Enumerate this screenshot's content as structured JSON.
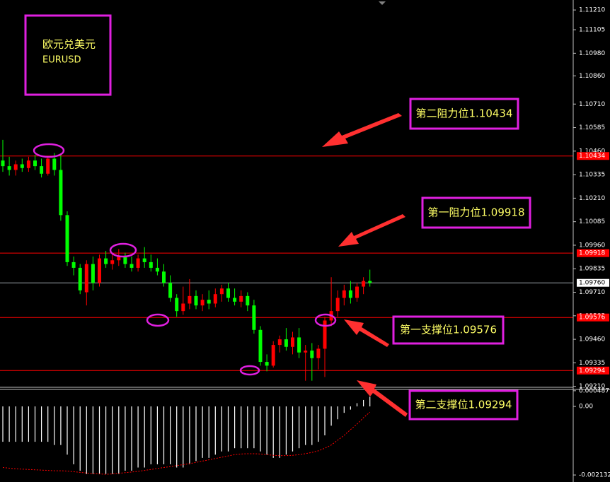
{
  "chart_data": [
    {
      "type": "candlestick",
      "title": "欧元兑美元",
      "subtitle": "EURUSD",
      "up_color": "#ff0000",
      "down_color": "#00ff00",
      "open": [
        1.1041,
        1.1038,
        1.1036,
        1.1039,
        1.1037,
        1.1041,
        1.1038,
        1.1034,
        1.1042,
        1.1036,
        1.1012,
        1.0987,
        1.0984,
        1.0971,
        1.0986,
        1.0976,
        1.0989,
        1.0986,
        1.0988,
        1.099,
        1.0986,
        1.0984,
        1.0989,
        1.0987,
        1.0984,
        1.0982,
        1.0976,
        1.0968,
        1.0961,
        1.0965,
        1.0969,
        1.0964,
        1.0967,
        1.0965,
        1.097,
        1.0973,
        1.0968,
        1.0966,
        1.0969,
        1.0964,
        1.0951,
        1.0934,
        1.0932,
        1.0943,
        1.0946,
        1.0942,
        1.0947,
        1.0939,
        1.094,
        1.0936,
        1.0941,
        1.0956,
        1.0961,
        1.0968,
        1.0972,
        1.0968,
        1.0974,
        1.0977
      ],
      "high": [
        1.1052,
        1.1043,
        1.1041,
        1.1042,
        1.1043,
        1.1044,
        1.1042,
        1.1043,
        1.1045,
        1.1044,
        1.1014,
        1.099,
        1.0986,
        1.0988,
        1.099,
        1.0991,
        1.0993,
        1.0991,
        1.0994,
        1.0992,
        1.099,
        1.0991,
        1.0995,
        1.0991,
        1.0989,
        1.0986,
        1.098,
        1.097,
        1.0974,
        1.0978,
        1.0972,
        1.097,
        1.0972,
        1.0973,
        1.0975,
        1.0976,
        1.0973,
        1.0972,
        1.0971,
        1.0967,
        1.0953,
        1.0938,
        1.0945,
        1.0948,
        1.0952,
        1.095,
        1.0952,
        1.0943,
        1.0944,
        1.0943,
        1.0958,
        1.0979,
        1.0972,
        1.0975,
        1.0977,
        1.0976,
        1.0979,
        1.0983
      ],
      "low": [
        1.1035,
        1.1033,
        1.1033,
        1.1035,
        1.1035,
        1.1036,
        1.1032,
        1.1033,
        1.1033,
        1.1009,
        1.0985,
        1.098,
        1.097,
        1.0964,
        1.0972,
        1.0974,
        1.0984,
        1.0983,
        1.0985,
        1.0984,
        1.0982,
        1.0982,
        1.0984,
        1.0982,
        1.098,
        1.0974,
        1.0966,
        1.0958,
        1.0959,
        1.0962,
        1.0962,
        1.0961,
        1.0962,
        1.0963,
        1.0966,
        1.0966,
        1.0964,
        1.0963,
        1.0961,
        1.0949,
        1.0932,
        1.0929,
        1.0931,
        1.0939,
        1.094,
        1.0938,
        1.0936,
        1.0924,
        1.0924,
        1.093,
        1.0926,
        1.0953,
        1.0958,
        1.0964,
        1.0965,
        1.0966,
        1.097,
        1.0974
      ],
      "close": [
        1.1038,
        1.1036,
        1.1039,
        1.1037,
        1.1041,
        1.1038,
        1.1034,
        1.1042,
        1.1036,
        1.1012,
        1.0987,
        1.0984,
        1.0972,
        1.0986,
        1.0976,
        1.0989,
        1.0986,
        1.0988,
        1.099,
        1.0986,
        1.0984,
        1.0989,
        1.0987,
        1.0984,
        1.0982,
        1.0976,
        1.0968,
        1.0961,
        1.0965,
        1.0969,
        1.0964,
        1.0967,
        1.0965,
        1.097,
        1.0973,
        1.0968,
        1.0966,
        1.0969,
        1.0964,
        1.0951,
        1.0934,
        1.0932,
        1.0943,
        1.0946,
        1.0942,
        1.0947,
        1.0939,
        1.094,
        1.0936,
        1.0941,
        1.0956,
        1.0961,
        1.0968,
        1.0972,
        1.0968,
        1.0974,
        1.0977,
        1.0976
      ],
      "ylim": [
        1.09205,
        1.11263
      ],
      "yticks": [
        {
          "value": 1.1121,
          "label": "1.11210"
        },
        1.11105,
        {
          "value": 1.1098,
          "label": "1.10980"
        },
        {
          "value": 1.1086,
          "label": "1.10860"
        },
        {
          "value": 1.1071,
          "label": "1.10710"
        },
        1.10585,
        {
          "value": 1.1046,
          "label": "1.10460"
        },
        1.10335,
        {
          "value": 1.1021,
          "label": "1.10210"
        },
        1.10085,
        {
          "value": 1.0996,
          "label": "1.09960"
        },
        1.09835,
        {
          "value": 1.0971,
          "label": "1.09710"
        },
        1.09585,
        {
          "value": 1.0946,
          "label": "1.09460"
        },
        1.09335,
        {
          "value": 1.0921,
          "label": "1.09210"
        }
      ],
      "levels": [
        {
          "value": 1.10434,
          "color": "#ff0000"
        },
        {
          "value": 1.09918,
          "color": "#ff0000"
        },
        {
          "value": 1.09576,
          "color": "#ff0000"
        },
        {
          "value": 1.09294,
          "color": "#ff0000"
        }
      ],
      "current_price": {
        "value": 1.0976,
        "label": "1.09760",
        "color": "#9aa0a8"
      },
      "annotations": [
        "第二阻力位1.10434",
        "第一阻力位1.09918",
        "第一支撑位1.09576",
        "第二支撑位1.09294"
      ]
    },
    {
      "type": "macd",
      "series": [
        {
          "name": "MACD",
          "color": "#ffffff",
          "values": [
            -0.0011,
            -0.0011,
            -0.0011,
            -0.0011,
            -0.0011,
            -0.0011,
            -0.0011,
            -0.0011,
            -0.0012,
            -0.0012,
            -0.0015,
            -0.0018,
            -0.002,
            -0.0021,
            -0.0021,
            -0.0021,
            -0.0021,
            -0.0021,
            -0.0021,
            -0.002,
            -0.002,
            -0.0019,
            -0.0019,
            -0.0018,
            -0.0018,
            -0.0018,
            -0.0018,
            -0.0019,
            -0.0019,
            -0.0018,
            -0.0017,
            -0.0016,
            -0.0016,
            -0.0015,
            -0.0014,
            -0.0014,
            -0.0013,
            -0.0013,
            -0.0013,
            -0.0013,
            -0.0014,
            -0.0015,
            -0.0016,
            -0.0016,
            -0.0015,
            -0.0014,
            -0.0013,
            -0.0012,
            -0.0012,
            -0.0011,
            -0.0009,
            -0.0006,
            -0.0004,
            -0.0002,
            -0.0001,
            0.0001,
            0.0002,
            0.0003
          ]
        },
        {
          "name": "Signal",
          "color": "#ff0000",
          "values": [
            -0.0019,
            -0.00192,
            -0.00194,
            -0.00195,
            -0.00196,
            -0.00197,
            -0.00198,
            -0.00199,
            -0.002,
            -0.002,
            -0.00201,
            -0.00203,
            -0.00205,
            -0.00207,
            -0.00209,
            -0.0021,
            -0.00211,
            -0.0021,
            -0.00208,
            -0.00206,
            -0.00204,
            -0.00202,
            -0.00199,
            -0.00196,
            -0.00193,
            -0.0019,
            -0.00187,
            -0.00184,
            -0.00181,
            -0.00178,
            -0.00174,
            -0.0017,
            -0.00166,
            -0.00162,
            -0.00158,
            -0.00154,
            -0.0015,
            -0.00148,
            -0.00147,
            -0.00147,
            -0.00148,
            -0.0015,
            -0.00152,
            -0.00153,
            -0.00153,
            -0.00152,
            -0.0015,
            -0.00147,
            -0.00143,
            -0.00138,
            -0.0013,
            -0.0012,
            -0.00105,
            -0.0009,
            -0.00072,
            -0.00055,
            -0.00035,
            -0.00018
          ]
        }
      ],
      "ylim": [
        -0.00235,
        0.000506
      ],
      "yticks": [
        0.000487,
        {
          "value": 0,
          "label": "0.00"
        },
        -0.002132
      ]
    }
  ]
}
